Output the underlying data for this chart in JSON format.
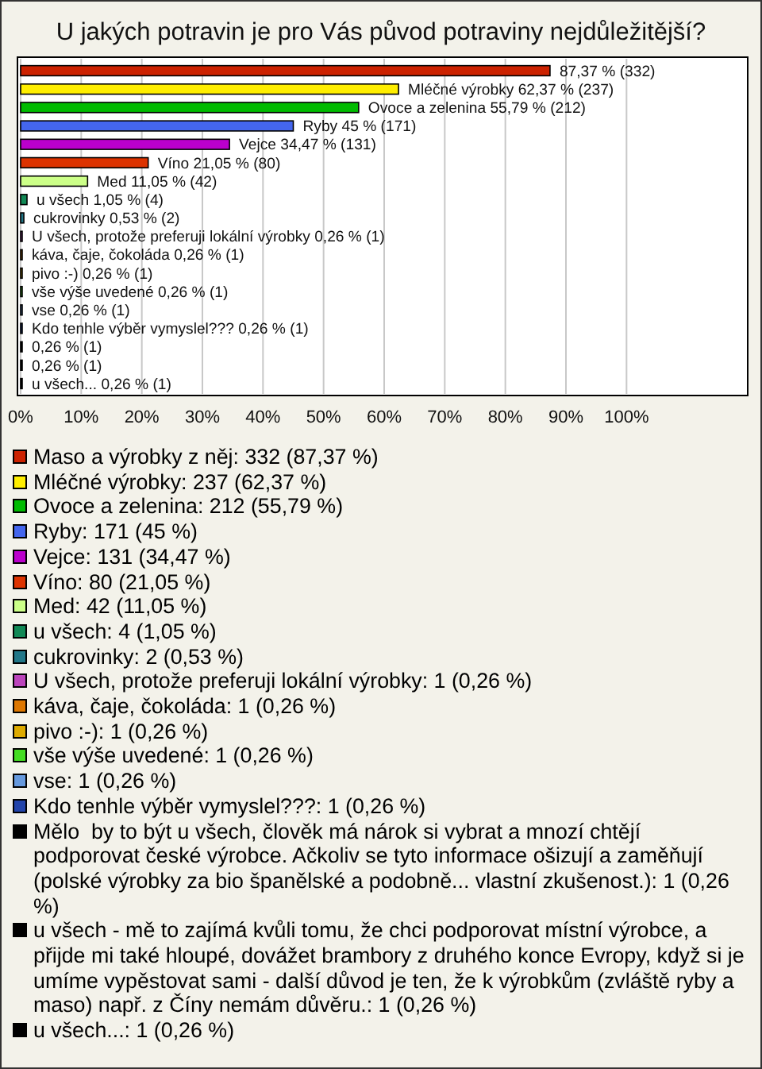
{
  "chart_data": {
    "type": "bar",
    "orientation": "horizontal",
    "title": "U jakých potravin je pro Vás původ potraviny nejdůležitější?",
    "categories": [
      null,
      null,
      null,
      null,
      null,
      null,
      null,
      null,
      null,
      null,
      null,
      null,
      null,
      null,
      null,
      null,
      null,
      null
    ],
    "values": [
      87.37,
      62.37,
      55.79,
      45,
      34.47,
      21.05,
      11.05,
      1.05,
      0.53,
      0.26,
      0.26,
      0.26,
      0.26,
      0.26,
      0.26,
      0.26,
      0.26,
      0.26
    ],
    "colors": [
      "#cc2200",
      "#ffee00",
      "#00bb00",
      "#4466ee",
      "#bb00cc",
      "#dd3300",
      "#ccff88",
      "#118855",
      "#227788",
      "#bb44bb",
      "#dd7700",
      "#ddaa00",
      "#44dd22",
      "#6699dd",
      "#2244aa",
      "#000000",
      "#000000",
      "#000000"
    ],
    "value_labels": [
      "87,37 % (332)",
      "Mléčné výrobky 62,37 % (237)",
      "Ovoce a zelenina 55,79 % (212)",
      "Ryby 45 % (171)",
      "Vejce 34,47 % (131)",
      "Víno 21,05 % (80)",
      "Med 11,05 % (42)",
      "u všech 1,05 % (4)",
      "cukrovinky 0,53 % (2)",
      "U všech, protože preferuji lokální výrobky 0,26 % (1)",
      "káva, čaje, čokoláda 0,26 % (1)",
      "pivo :-) 0,26 % (1)",
      "vše výše uvedené 0,26 % (1)",
      "vse 0,26 % (1)",
      "Kdo tenhle výběr vymyslel??? 0,26 % (1)",
      "0,26 % (1)",
      "0,26 % (1)",
      "u všech... 0,26 % (1)"
    ],
    "xlim": [
      0,
      120
    ],
    "xticks": [
      {
        "value": 0,
        "label": "0%"
      },
      {
        "value": 10,
        "label": "10%"
      },
      {
        "value": 20,
        "label": "20%"
      },
      {
        "value": 30,
        "label": "30%"
      },
      {
        "value": 40,
        "label": "40%"
      },
      {
        "value": 50,
        "label": "50%"
      },
      {
        "value": 60,
        "label": "60%"
      },
      {
        "value": 70,
        "label": "70%"
      },
      {
        "value": 80,
        "label": "80%"
      },
      {
        "value": 90,
        "label": "90%"
      },
      {
        "value": 100,
        "label": "100%"
      }
    ],
    "grid": "x",
    "annotations": [
      "Maso a výrobky z něj: 332 (87,37 %)",
      "Mléčné výrobky: 237 (62,37 %)",
      "Ovoce a zelenina: 212 (55,79 %)",
      "Ryby: 171 (45 %)",
      "Vejce: 131 (34,47 %)",
      "Víno: 80 (21,05 %)",
      "Med: 42 (11,05 %)",
      "u všech: 4 (1,05 %)",
      "cukrovinky: 2 (0,53 %)",
      "U všech, protože preferuji lokální výrobky: 1 (0,26 %)",
      "káva, čaje, čokoláda: 1 (0,26 %)",
      "pivo :-): 1 (0,26 %)",
      "vše výše uvedené: 1 (0,26 %)",
      "vse: 1 (0,26 %)",
      "Kdo tenhle výběr vymyslel???: 1 (0,26 %)",
      "Mělo  by to být u všech, člověk má nárok si vybrat a mnozí chtějí podporovat české výrobce. Ačkoliv se tyto informace ošizují a zaměňují (polské výrobky za bio španělské a podobně... vlastní zkušenost.): 1 (0,26 %)",
      "u všech - mě to zajímá kvůli tomu, že chci podporovat místní výrobce, a přijde mi také hloupé, dovážet brambory z druhého konce Evropy, když si je umíme vypěstovat sami - další důvod je ten, že k výrobkům (zvláště ryby a maso) např. z Číny nemám důvěru.: 1 (0,26 %)",
      "u všech...: 1 (0,26 %)"
    ]
  }
}
